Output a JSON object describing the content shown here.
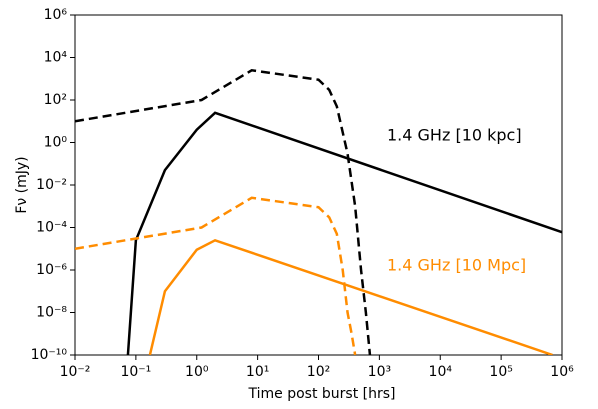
{
  "chart_data": {
    "type": "line",
    "xlabel": "Time post burst [hrs]",
    "ylabel": "Fν (mJy)",
    "xscale": "log",
    "yscale": "log",
    "xlim": [
      0.01,
      1000000
    ],
    "ylim": [
      1e-10,
      1000000
    ],
    "xticks": [
      {
        "value": 0.01,
        "label": "10⁻²"
      },
      {
        "value": 0.1,
        "label": "10⁻¹"
      },
      {
        "value": 1,
        "label": "10⁰"
      },
      {
        "value": 10,
        "label": "10¹"
      },
      {
        "value": 100,
        "label": "10²"
      },
      {
        "value": 1000,
        "label": "10³"
      },
      {
        "value": 10000,
        "label": "10⁴"
      },
      {
        "value": 100000,
        "label": "10⁵"
      },
      {
        "value": 1000000,
        "label": "10⁶"
      }
    ],
    "yticks": [
      {
        "value": 1e-10,
        "label": "10⁻¹⁰"
      },
      {
        "value": 1e-08,
        "label": "10⁻⁸"
      },
      {
        "value": 1e-06,
        "label": "10⁻⁶"
      },
      {
        "value": 0.0001,
        "label": "10⁻⁴"
      },
      {
        "value": 0.01,
        "label": "10⁻²"
      },
      {
        "value": 1,
        "label": "10⁰"
      },
      {
        "value": 100,
        "label": "10²"
      },
      {
        "value": 10000,
        "label": "10⁴"
      },
      {
        "value": 1000000,
        "label": "10⁶"
      }
    ],
    "series": [
      {
        "color": "#000000",
        "dash": "dashed",
        "x": [
          0.01,
          1.2,
          8,
          100,
          150,
          200,
          300,
          400,
          500,
          600,
          700
        ],
        "values": [
          10,
          100,
          2500,
          900,
          300,
          50,
          0.3,
          0.001,
          1e-06,
          1e-08,
          1e-10
        ]
      },
      {
        "color": "#000000",
        "dash": "solid",
        "x": [
          0.074,
          0.1,
          0.3,
          1,
          2,
          1000000
        ],
        "values": [
          1e-10,
          2.5e-05,
          0.05,
          4,
          25,
          6e-05
        ]
      },
      {
        "color": "#ff8c00",
        "dash": "dashed",
        "x": [
          0.01,
          1.2,
          8,
          100,
          150,
          200,
          250,
          300,
          350,
          400
        ],
        "values": [
          1e-05,
          0.0001,
          0.0025,
          0.0009,
          0.0003,
          5e-05,
          1e-06,
          1e-08,
          1e-09,
          1e-10
        ]
      },
      {
        "color": "#ff8c00",
        "dash": "solid",
        "x": [
          0.17,
          0.3,
          1,
          2,
          700000
        ],
        "values": [
          1e-10,
          1e-07,
          9e-06,
          2.5e-05,
          1e-10
        ]
      }
    ],
    "annotations": [
      {
        "text": "1.4 GHz [10 kpc]",
        "color": "#000000"
      },
      {
        "text": "1.4 GHz [10 Mpc]",
        "color": "#ff8c00"
      }
    ]
  }
}
